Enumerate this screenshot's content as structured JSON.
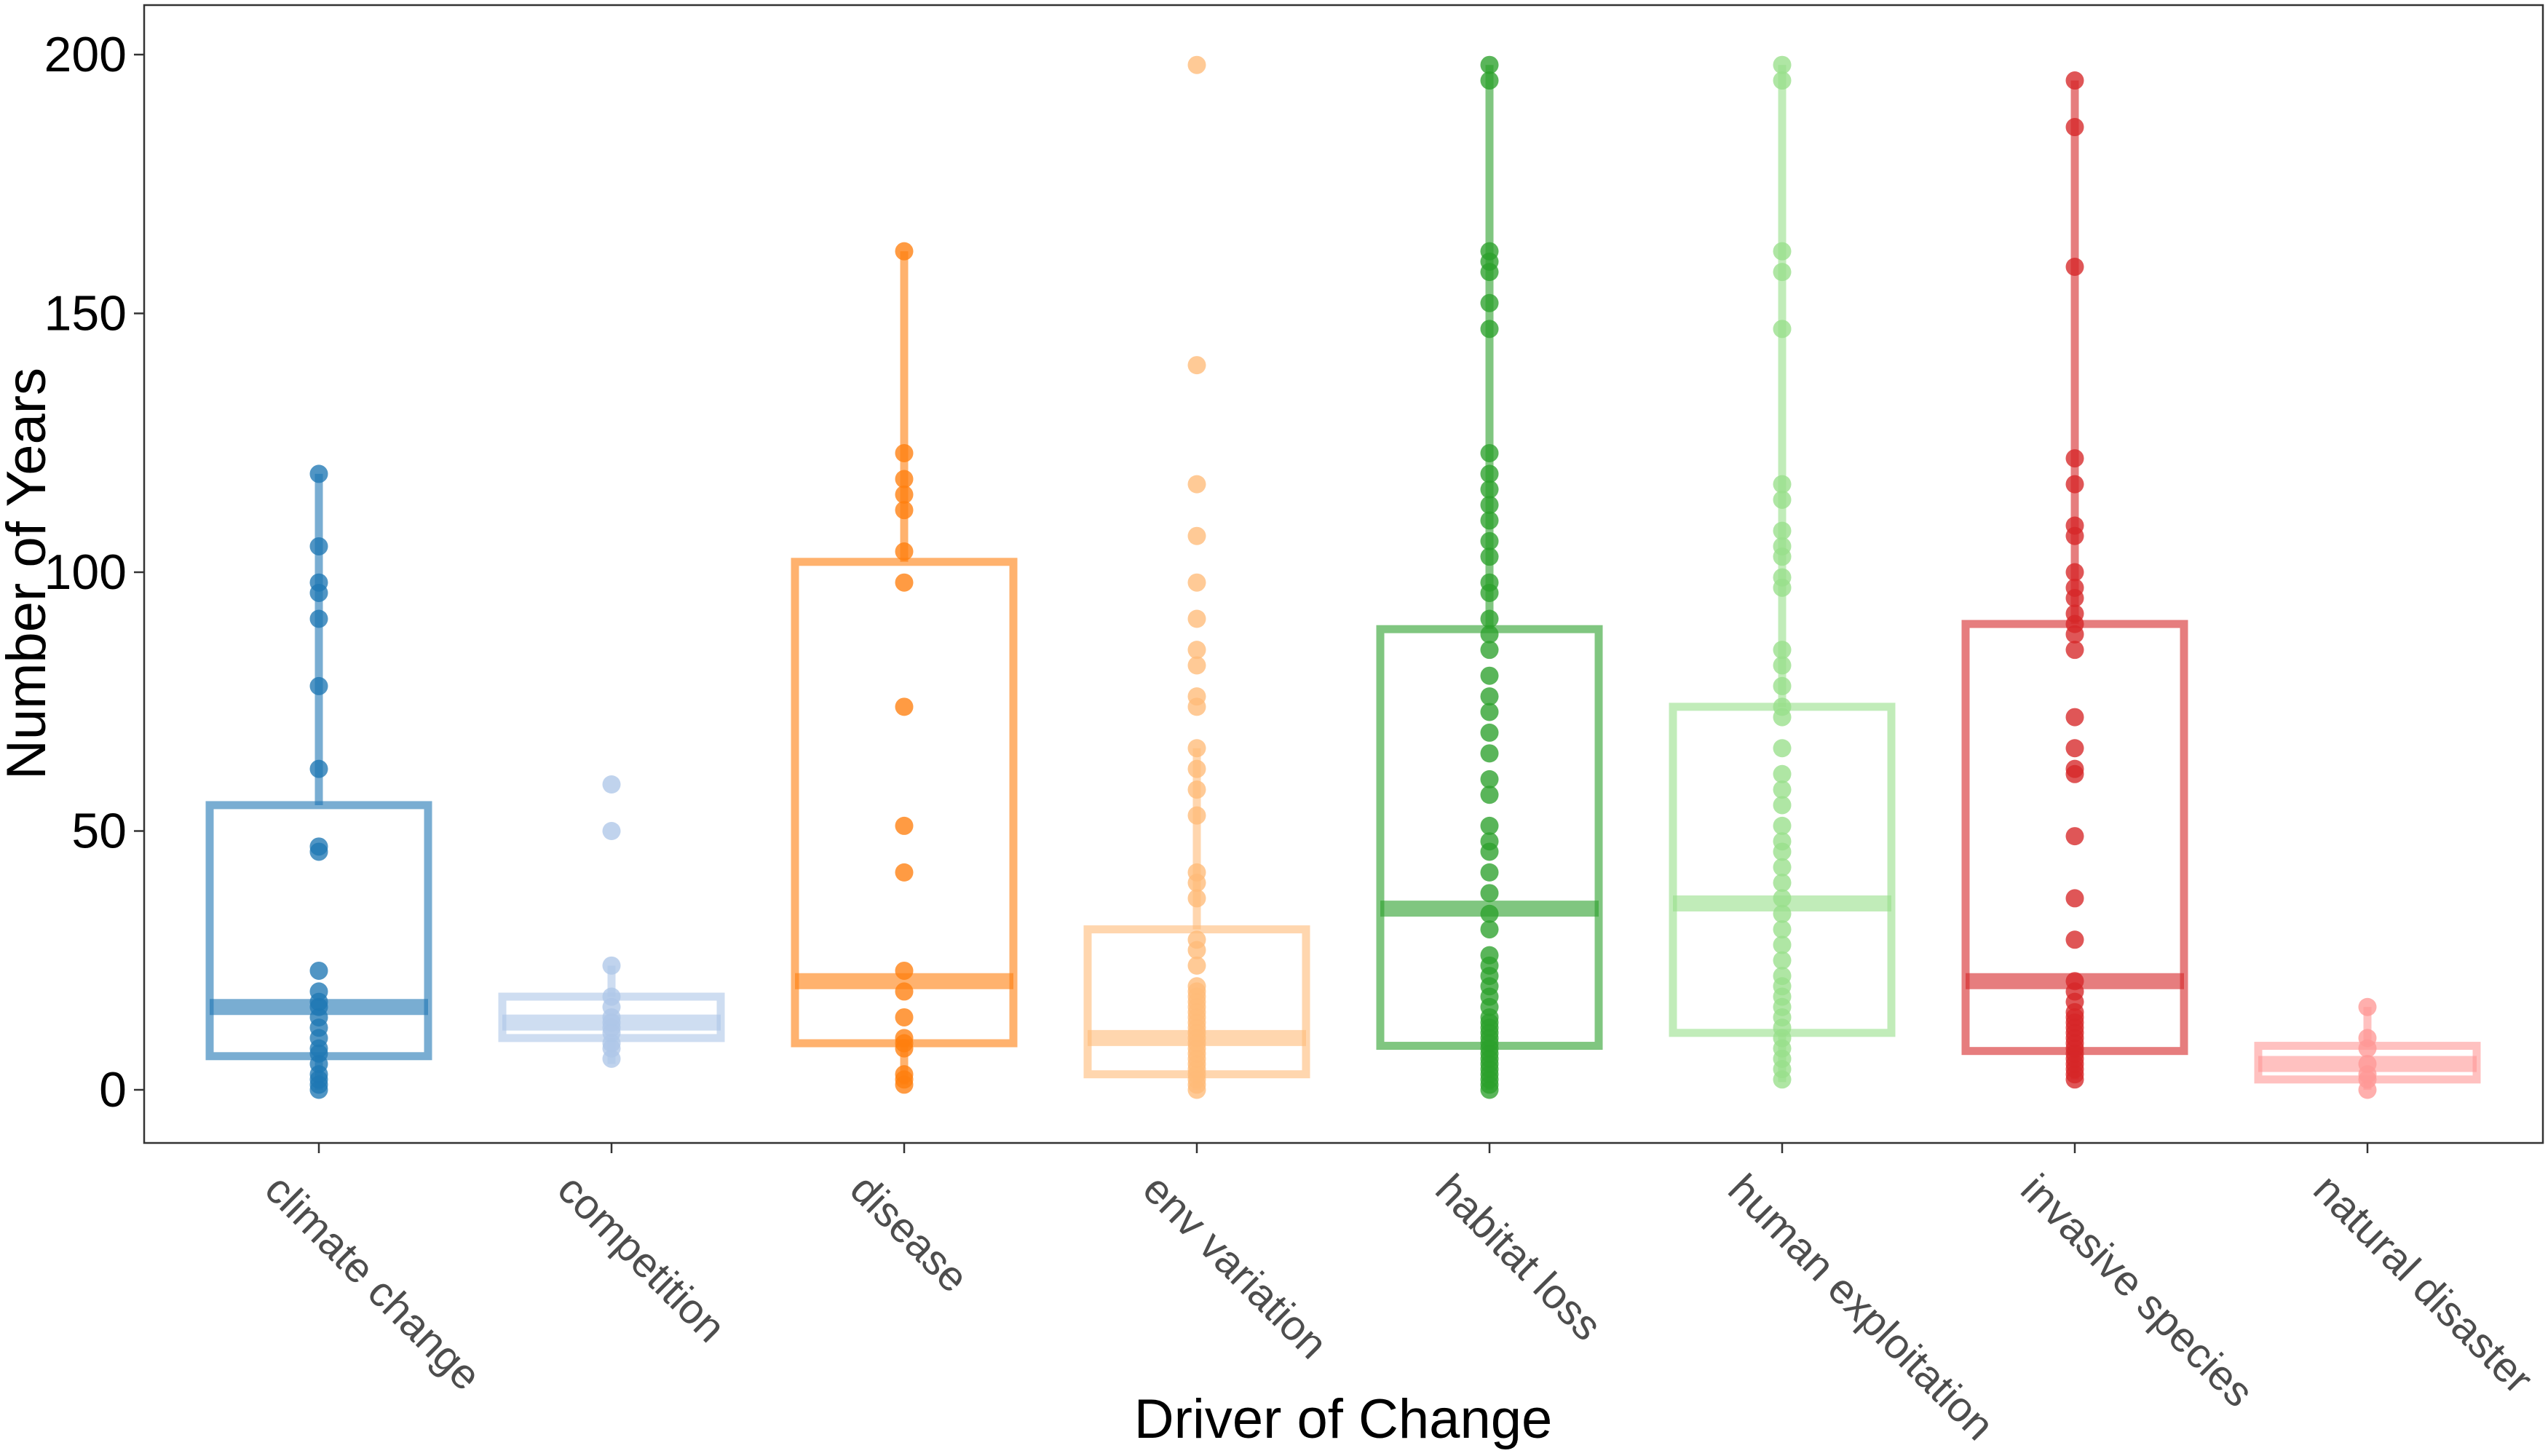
{
  "chart_data": {
    "type": "boxplot",
    "xlabel": "Driver of Change",
    "ylabel": "Number of Years",
    "ylim": [
      -10,
      210
    ],
    "yticks": [
      0,
      50,
      100,
      150,
      200
    ],
    "grid": false,
    "legend": "none",
    "categories": [
      "climate change",
      "competition",
      "disease",
      "env variation",
      "habitat loss",
      "human exploitation",
      "invasive species",
      "natural disaster"
    ],
    "colors": [
      "#1f77b4",
      "#aec7e8",
      "#ff7f0e",
      "#ffbb78",
      "#2ca02c",
      "#98df8a",
      "#d62728",
      "#ff9896"
    ],
    "boxes": [
      {
        "q1": 6.5,
        "median": 16,
        "q3": 55,
        "whisker_low": 0,
        "whisker_high": 119
      },
      {
        "q1": 10,
        "median": 13,
        "q3": 18,
        "whisker_low": 5,
        "whisker_high": 24
      },
      {
        "q1": 9,
        "median": 21,
        "q3": 102,
        "whisker_low": 1,
        "whisker_high": 162
      },
      {
        "q1": 3,
        "median": 10,
        "q3": 31,
        "whisker_low": 0,
        "whisker_high": 66
      },
      {
        "q1": 8.5,
        "median": 35,
        "q3": 89,
        "whisker_low": 0,
        "whisker_high": 198
      },
      {
        "q1": 11,
        "median": 36,
        "q3": 74,
        "whisker_low": 1.5,
        "whisker_high": 198
      },
      {
        "q1": 7.5,
        "median": 21,
        "q3": 90,
        "whisker_low": 2,
        "whisker_high": 195
      },
      {
        "q1": 2,
        "median": 5,
        "q3": 8.5,
        "whisker_low": 0,
        "whisker_high": 16
      }
    ],
    "points": [
      [
        0,
        1,
        2,
        3,
        5,
        7,
        8,
        10,
        12,
        14,
        16,
        17,
        19,
        23,
        46,
        47,
        62,
        78,
        91,
        96,
        98,
        105,
        119
      ],
      [
        6,
        8,
        9,
        11,
        12,
        13,
        14,
        16,
        18,
        24,
        50,
        59
      ],
      [
        1,
        2,
        3,
        8,
        9,
        10,
        14,
        19,
        23,
        42,
        51,
        74,
        98,
        104,
        112,
        115,
        118,
        123,
        162
      ],
      [
        0,
        1,
        2,
        3,
        4,
        5,
        6,
        7,
        8,
        9,
        10,
        11,
        12,
        13,
        14,
        15,
        16,
        17,
        18,
        19,
        20,
        24,
        27,
        29,
        37,
        40,
        42,
        53,
        58,
        62,
        66,
        74,
        76,
        82,
        85,
        91,
        98,
        107,
        117,
        140,
        198
      ],
      [
        0,
        1,
        2,
        3,
        4,
        5,
        6,
        7,
        8,
        9,
        10,
        11,
        12,
        13,
        14,
        16,
        18,
        20,
        22,
        24,
        26,
        31,
        34,
        38,
        42,
        46,
        48,
        51,
        57,
        60,
        65,
        69,
        73,
        76,
        80,
        85,
        88,
        91,
        96,
        98,
        103,
        106,
        110,
        113,
        116,
        119,
        123,
        147,
        152,
        158,
        160,
        162,
        195,
        198
      ],
      [
        2,
        4,
        6,
        8,
        10,
        12,
        14,
        16,
        18,
        20,
        22,
        25,
        28,
        31,
        34,
        37,
        40,
        43,
        46,
        48,
        51,
        55,
        58,
        61,
        66,
        72,
        74,
        78,
        82,
        85,
        97,
        99,
        103,
        105,
        108,
        114,
        117,
        147,
        158,
        162,
        195,
        198
      ],
      [
        2,
        3,
        4,
        5,
        6,
        7,
        8,
        9,
        10,
        11,
        12,
        13,
        14,
        15,
        17,
        19,
        21,
        29,
        37,
        49,
        61,
        62,
        66,
        72,
        85,
        88,
        90,
        92,
        95,
        97,
        100,
        107,
        109,
        117,
        122,
        159,
        186,
        195
      ],
      [
        0,
        2,
        3,
        5,
        8,
        10,
        16
      ]
    ]
  }
}
